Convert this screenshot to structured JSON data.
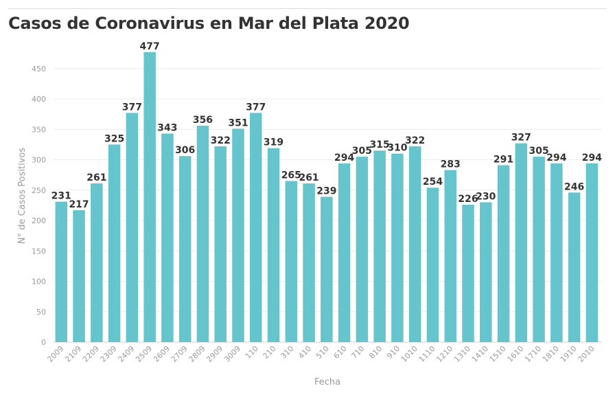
{
  "title": "Casos de Coronavirus en Mar del Plata 2020",
  "colors": {
    "bar": "#65c4cc",
    "grid": "#ececec",
    "axis_text": "#9a9a9a",
    "label_text": "#333333"
  },
  "chart_data": {
    "type": "bar",
    "title": "Casos de Coronavirus en Mar del Plata 2020",
    "xlabel": "Fecha",
    "ylabel": "N° de Casos Positivos",
    "ylim": [
      0,
      480
    ],
    "yticks": [
      "0",
      "50",
      "100",
      "150",
      "200",
      "250",
      "300",
      "350",
      "400",
      "450"
    ],
    "grid": true,
    "categories": [
      "2009",
      "2109",
      "2209",
      "2309",
      "2409",
      "2509",
      "2609",
      "2709",
      "2809",
      "2909",
      "3009",
      "110",
      "210",
      "310",
      "410",
      "510",
      "610",
      "710",
      "810",
      "910",
      "1010",
      "1110",
      "1210",
      "1310",
      "1410",
      "1510",
      "1610",
      "1710",
      "1810",
      "1910",
      "2010"
    ],
    "values": [
      231,
      217,
      261,
      325,
      377,
      477,
      343,
      306,
      356,
      322,
      351,
      377,
      319,
      265,
      261,
      239,
      294,
      305,
      315,
      310,
      322,
      254,
      283,
      226,
      230,
      291,
      327,
      305,
      294,
      246,
      294
    ]
  }
}
